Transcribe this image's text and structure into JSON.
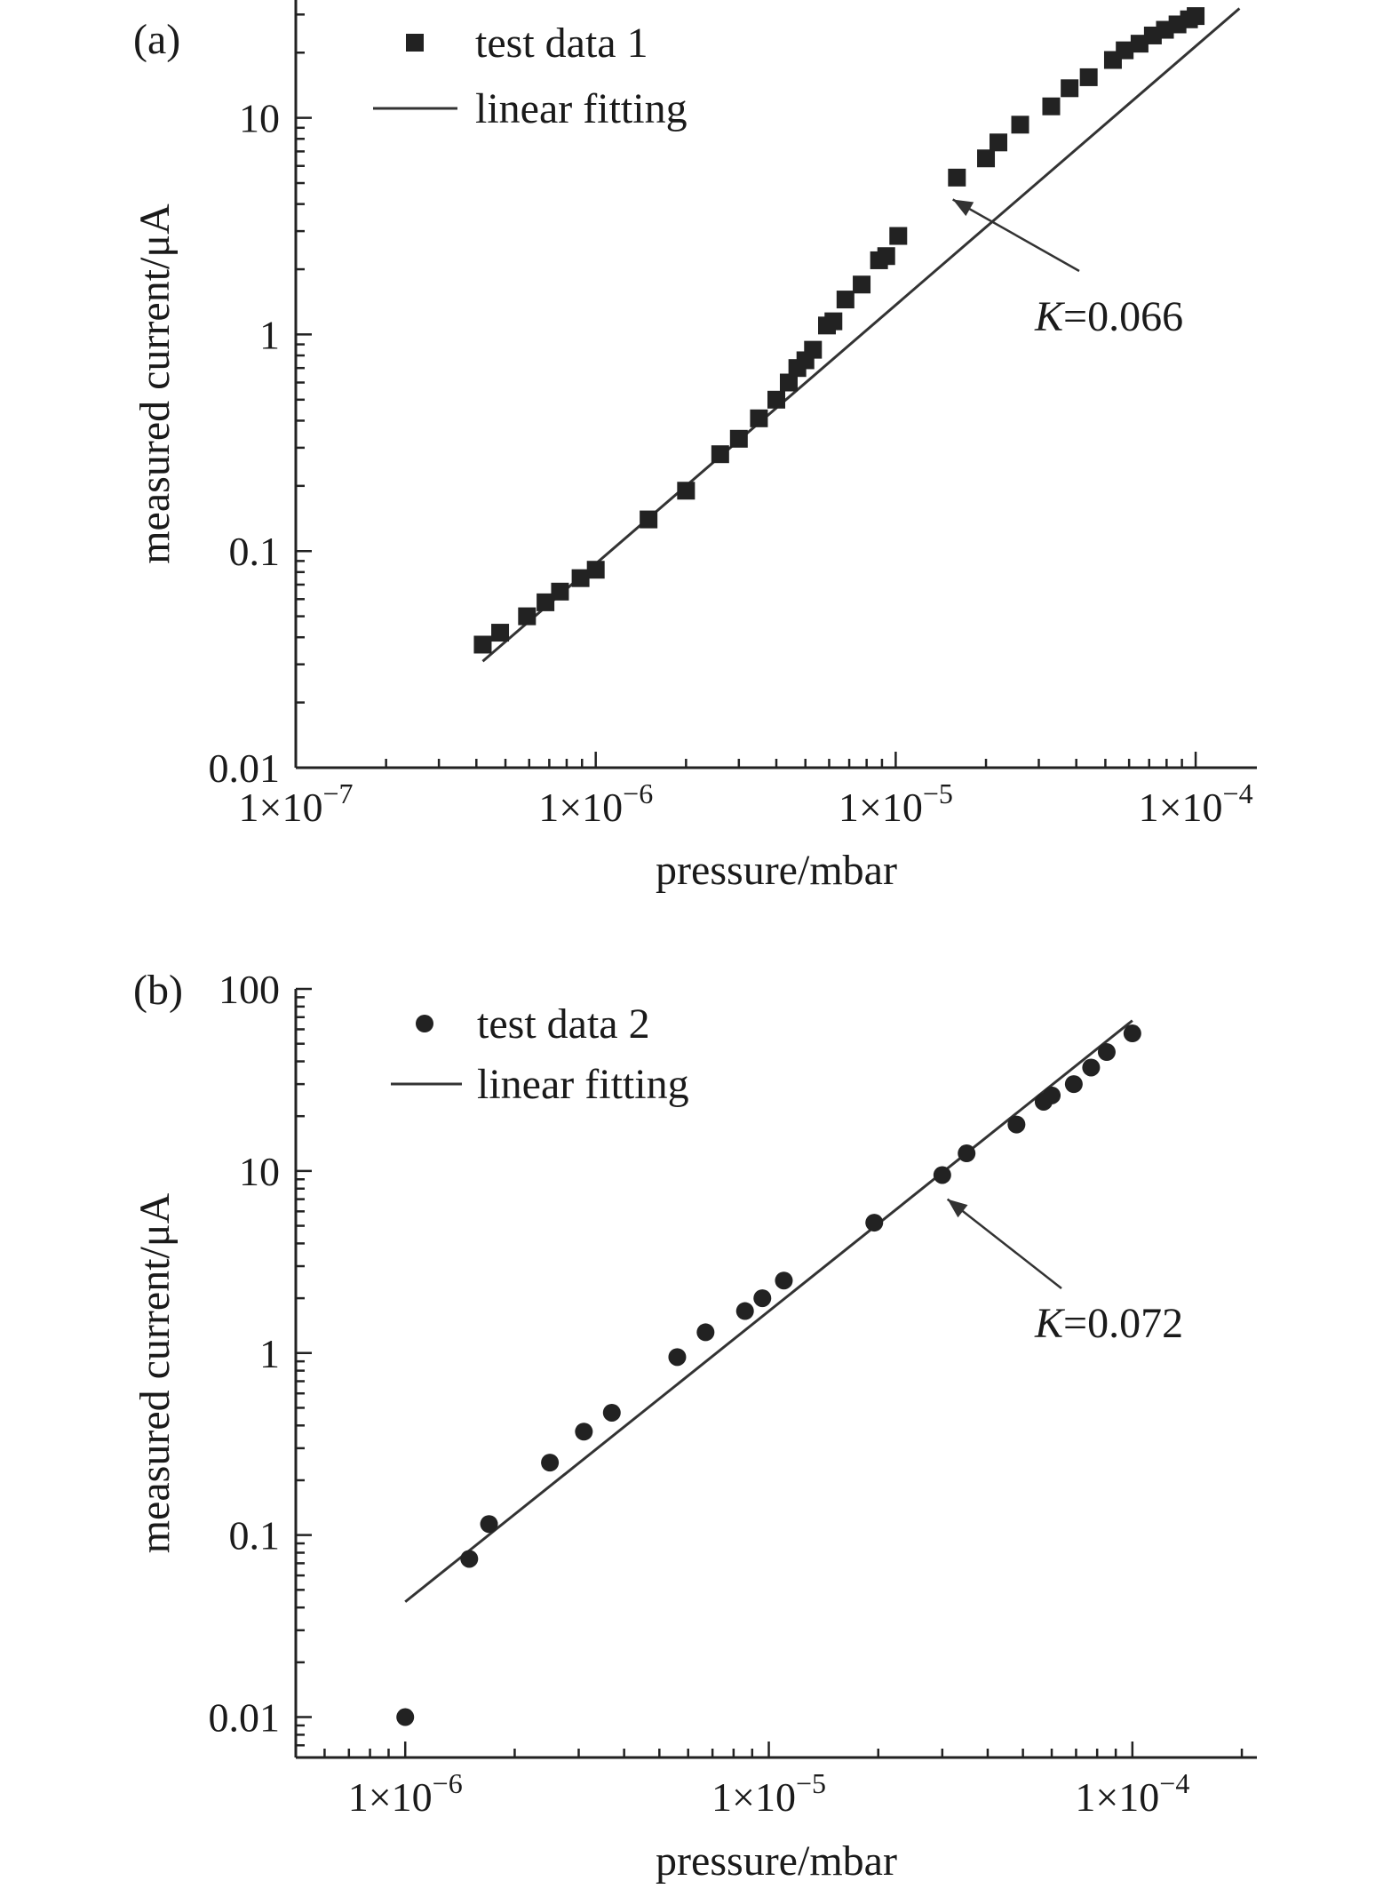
{
  "chart_data": [
    {
      "type": "scatter",
      "panel_label": "(a)",
      "xlabel": "pressure/mbar",
      "ylabel": "measured current/μA",
      "x_scale": "log",
      "y_scale": "log",
      "xlim": [
        1e-07,
        0.00016
      ],
      "ylim": [
        0.01,
        35
      ],
      "xticks": [
        1e-07,
        1e-06,
        1e-05,
        0.0001
      ],
      "xtick_labels": [
        {
          "base": "1×10",
          "exp": "−7"
        },
        {
          "base": "1×10",
          "exp": "−6"
        },
        {
          "base": "1×10",
          "exp": "−5"
        },
        {
          "base": "1×10",
          "exp": "−4"
        }
      ],
      "yticks": [
        0.01,
        0.1,
        1,
        10
      ],
      "ytick_labels": [
        "0.01",
        "0.1",
        "1",
        "10"
      ],
      "marker": "square",
      "legend": [
        {
          "label": "test data 1",
          "kind": "marker"
        },
        {
          "label": "linear fitting",
          "kind": "line"
        }
      ],
      "annotation": {
        "var": "K",
        "text": "=0.066",
        "x": 1.55e-05,
        "y": 4.2
      },
      "series": [
        {
          "name": "test data 1",
          "x": [
            4.2e-07,
            4.8e-07,
            5.9e-07,
            6.8e-07,
            7.6e-07,
            8.9e-07,
            1e-06,
            1.5e-06,
            2e-06,
            2.6e-06,
            3e-06,
            3.5e-06,
            4e-06,
            4.4e-06,
            4.7e-06,
            5e-06,
            5.3e-06,
            5.9e-06,
            6.2e-06,
            6.8e-06,
            7.7e-06,
            8.8e-06,
            9.3e-06,
            1.02e-05,
            1.6e-05,
            2e-05,
            2.2e-05,
            2.6e-05,
            3.3e-05,
            3.8e-05,
            4.4e-05,
            5.3e-05,
            5.8e-05,
            6.5e-05,
            7.2e-05,
            7.9e-05,
            8.7e-05,
            9.5e-05,
            0.0001
          ],
          "y": [
            0.037,
            0.042,
            0.05,
            0.058,
            0.065,
            0.075,
            0.082,
            0.14,
            0.19,
            0.28,
            0.33,
            0.41,
            0.5,
            0.6,
            0.7,
            0.76,
            0.85,
            1.1,
            1.15,
            1.45,
            1.7,
            2.2,
            2.3,
            2.85,
            5.3,
            6.5,
            7.7,
            9.3,
            11.3,
            13.7,
            15.4,
            18.5,
            20.5,
            22.0,
            24.0,
            25.5,
            27.0,
            28.5,
            29.5
          ]
        },
        {
          "name": "linear fitting",
          "x": [
            4.2e-07,
            0.00014
          ],
          "y": [
            0.031,
            32
          ]
        }
      ]
    },
    {
      "type": "scatter",
      "panel_label": "(b)",
      "xlabel": "pressure/mbar",
      "ylabel": "measured current/μA",
      "x_scale": "log",
      "y_scale": "log",
      "xlim": [
        5e-07,
        0.00022
      ],
      "ylim": [
        0.006,
        100
      ],
      "xticks": [
        1e-06,
        1e-05,
        0.0001
      ],
      "xtick_labels": [
        {
          "base": "1×10",
          "exp": "−6"
        },
        {
          "base": "1×10",
          "exp": "−5"
        },
        {
          "base": "1×10",
          "exp": "−4"
        }
      ],
      "yticks": [
        0.01,
        0.1,
        1,
        10,
        100
      ],
      "ytick_labels": [
        "0.01",
        "0.1",
        "1",
        "10",
        "100"
      ],
      "marker": "circle",
      "legend": [
        {
          "label": "test data 2",
          "kind": "marker"
        },
        {
          "label": "linear fitting",
          "kind": "line"
        }
      ],
      "annotation": {
        "var": "K",
        "text": "=0.072",
        "x": 3.1e-05,
        "y": 7.0
      },
      "series": [
        {
          "name": "test data 2",
          "x": [
            1e-06,
            1.5e-06,
            1.7e-06,
            2.5e-06,
            3.1e-06,
            3.7e-06,
            5.6e-06,
            6.7e-06,
            8.6e-06,
            9.6e-06,
            1.1e-05,
            1.95e-05,
            3e-05,
            3.5e-05,
            4.8e-05,
            5.7e-05,
            6e-05,
            6.9e-05,
            7.7e-05,
            8.5e-05,
            0.0001
          ],
          "y": [
            0.01,
            0.074,
            0.115,
            0.25,
            0.37,
            0.47,
            0.95,
            1.3,
            1.7,
            2.0,
            2.5,
            5.2,
            9.5,
            12.5,
            18.0,
            24.0,
            26.0,
            30.0,
            37.0,
            45.0,
            57.0
          ]
        },
        {
          "name": "linear fitting",
          "x": [
            1e-06,
            0.0001
          ],
          "y": [
            0.043,
            67
          ]
        }
      ]
    }
  ]
}
